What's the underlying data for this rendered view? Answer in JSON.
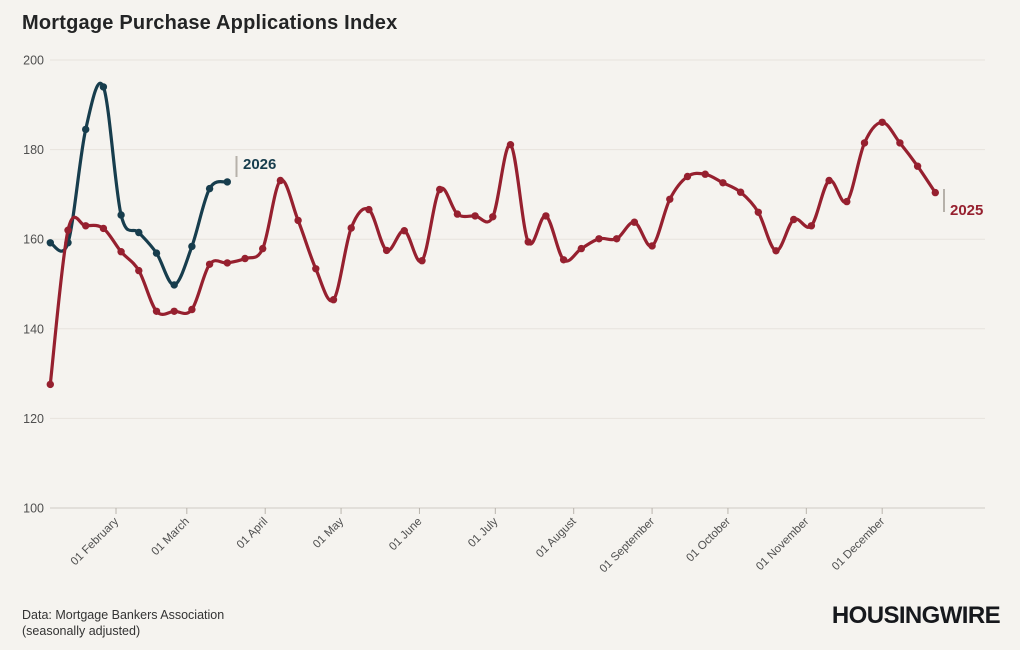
{
  "page": {
    "title": "Mortgage Purchase Applications Index",
    "source_line1": "Data: Mortgage Bankers Association",
    "source_line2": "(seasonally adjusted)",
    "logo": "HOUSINGWIRE"
  },
  "colors": {
    "background": "#f5f3ef",
    "gridline": "#e7e3dd",
    "axis_line": "#d0cbc4",
    "tick_mark": "#b9b4ad",
    "label_leader_tick": "#b6b1aa",
    "tick_text": "#4f4f4f",
    "title_text": "#232425",
    "series_2026": "#173d4d",
    "series_2025": "#96202f"
  },
  "chart_data": {
    "type": "line",
    "title": "Mortgage Purchase Applications Index",
    "xlabel": "",
    "ylabel": "",
    "ylim": [
      100,
      200
    ],
    "yticks": [
      100,
      120,
      140,
      160,
      180,
      200
    ],
    "grid": "horizontal",
    "legend_position": "inline-end-of-line-labels",
    "x_unit": "weekly, plotted by day of year",
    "xticks": [
      {
        "label": "01 February",
        "day": 32
      },
      {
        "label": "01 March",
        "day": 60
      },
      {
        "label": "01 April",
        "day": 91
      },
      {
        "label": "01 May",
        "day": 121
      },
      {
        "label": "01 June",
        "day": 152
      },
      {
        "label": "01 July",
        "day": 182
      },
      {
        "label": "01 August",
        "day": 213
      },
      {
        "label": "01 September",
        "day": 244
      },
      {
        "label": "01 October",
        "day": 274
      },
      {
        "label": "01 November",
        "day": 305
      },
      {
        "label": "01 December",
        "day": 335
      }
    ],
    "series": [
      {
        "name": "2026",
        "color": "#173d4d",
        "start_day": 6,
        "step_days": 7,
        "values": [
          159.2,
          159.2,
          184.5,
          194.0,
          165.4,
          161.5,
          156.9,
          149.8,
          158.4,
          171.3,
          172.8
        ]
      },
      {
        "name": "2025",
        "color": "#96202f",
        "start_day": 6,
        "step_days": 7,
        "values": [
          127.6,
          162.0,
          163.0,
          162.4,
          157.2,
          153.0,
          143.9,
          143.9,
          144.3,
          154.4,
          154.7,
          155.7,
          157.9,
          173.1,
          164.2,
          153.4,
          146.5,
          162.5,
          166.6,
          157.5,
          161.9,
          155.2,
          171.1,
          165.6,
          165.2,
          165.0,
          181.1,
          159.4,
          165.2,
          155.4,
          157.9,
          160.1,
          160.1,
          163.8,
          158.5,
          168.9,
          174.0,
          174.5,
          172.6,
          170.5,
          166.0,
          157.4,
          164.4,
          163.0,
          173.1,
          168.4,
          181.5,
          186.1,
          181.5,
          176.3,
          170.4
        ]
      }
    ]
  }
}
